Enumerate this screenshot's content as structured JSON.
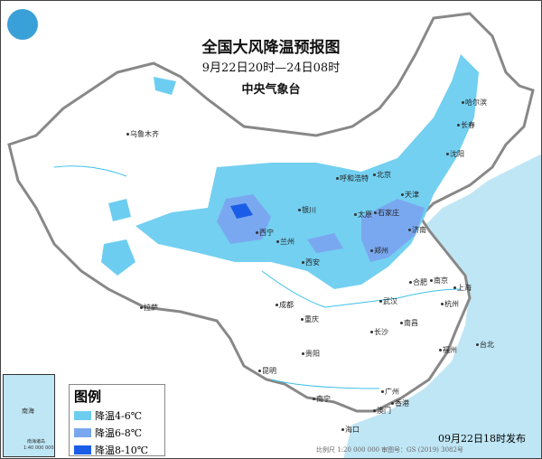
{
  "title": "全国大风降温预报图",
  "period": "9月22日20时—24日08时",
  "issuer": "中央气象台",
  "legend": {
    "title": "图例",
    "items": [
      {
        "label": "降温4-6℃",
        "color": "#6ccdf0"
      },
      {
        "label": "降温6-8℃",
        "color": "#7aa8f0"
      },
      {
        "label": "降温8-10℃",
        "color": "#1a5ee8"
      }
    ]
  },
  "cities": [
    "乌鲁木齐",
    "哈尔滨",
    "长春",
    "沈阳",
    "呼和浩特",
    "北京",
    "天津",
    "石家庄",
    "太原",
    "银川",
    "西宁",
    "兰州",
    "济南",
    "郑州",
    "西安",
    "合肥",
    "南京",
    "上海",
    "杭州",
    "武汉",
    "成都",
    "重庆",
    "拉萨",
    "长沙",
    "南昌",
    "贵阳",
    "福州",
    "台北",
    "昆明",
    "南宁",
    "广州",
    "香港",
    "澳门",
    "海口"
  ],
  "inset": {
    "sea": "南海",
    "islands": "南海诸岛",
    "scale": "1:40 000 000"
  },
  "footer": {
    "issued": "09月22日18时发布",
    "scale": "比例尺 1:20 000 000",
    "review_no": "审图号：GS (2019) 3082号"
  },
  "colors": {
    "sea": "#bfe6f5",
    "land": "#ffffff",
    "border": "#888888"
  }
}
